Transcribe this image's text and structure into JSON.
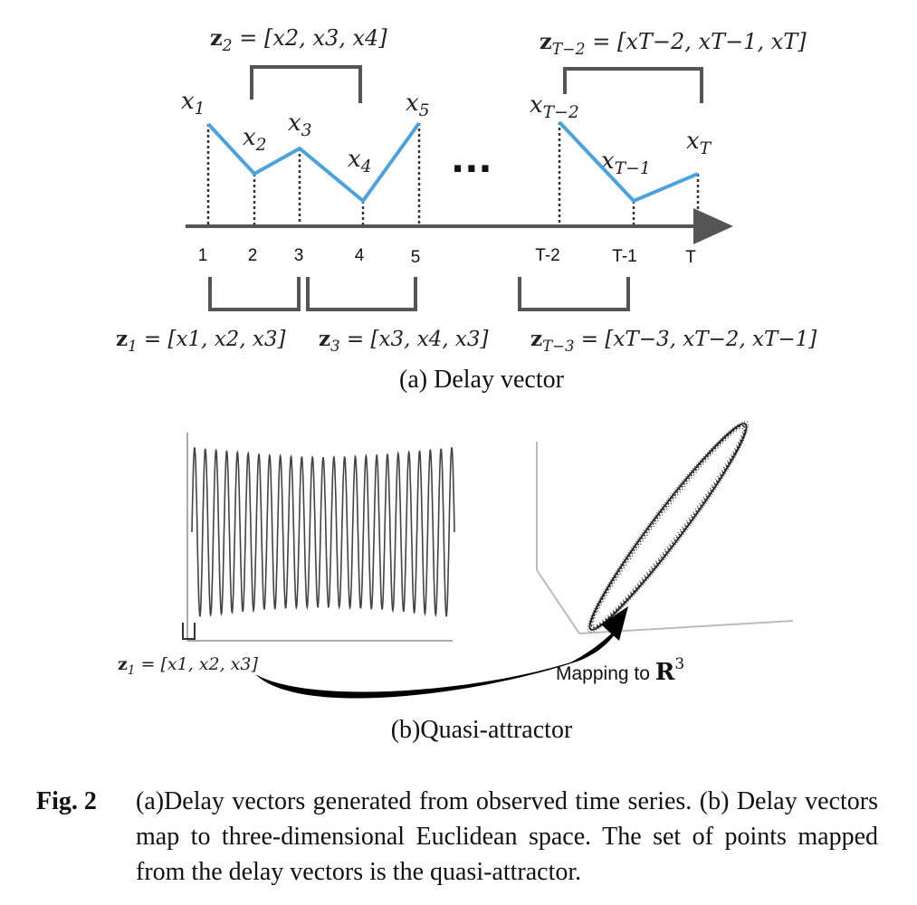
{
  "panel_a": {
    "top_brackets": [
      {
        "z": "z",
        "zsub": "2",
        "rhs": "= [x",
        "items": "[x2, x3, x4]"
      },
      {
        "z": "z",
        "zsub": "T−2",
        "items": "[xT−2, xT−1, xT]"
      }
    ],
    "point_labels": [
      {
        "base": "x",
        "sub": "1"
      },
      {
        "base": "x",
        "sub": "2"
      },
      {
        "base": "x",
        "sub": "3"
      },
      {
        "base": "x",
        "sub": "4"
      },
      {
        "base": "x",
        "sub": "5"
      },
      {
        "base": "x",
        "sub": "T−2"
      },
      {
        "base": "x",
        "sub": "T−1"
      },
      {
        "base": "x",
        "sub": "T"
      }
    ],
    "ellipsis": "···",
    "ticks": [
      "1",
      "2",
      "3",
      "4",
      "5",
      "T-2",
      "T-1",
      "T"
    ],
    "vectors": {
      "z2": "[x2, x3, x4]",
      "zT2": "[xT−2, xT−1, xT]",
      "z1": "[x1, x2, x3]",
      "z3": "[x3, x4, x3]",
      "zT3": "[xT−3, xT−2, xT−1]"
    },
    "caption": "(a) Delay vector",
    "series_color": "#4aa3df"
  },
  "panel_b": {
    "z1_label": "[x1, x2, x3]",
    "mapping_text": "Mapping to",
    "mapping_space": "R",
    "mapping_power": "3",
    "caption": "(b)Quasi-attractor"
  },
  "figure_caption": {
    "label": "Fig. 2",
    "text": "(a)Delay vectors generated from observed time series. (b) Delay vectors map to three-dimensional Euclidean space.  The set of points mapped from the delay vectors is the quasi-attractor."
  }
}
